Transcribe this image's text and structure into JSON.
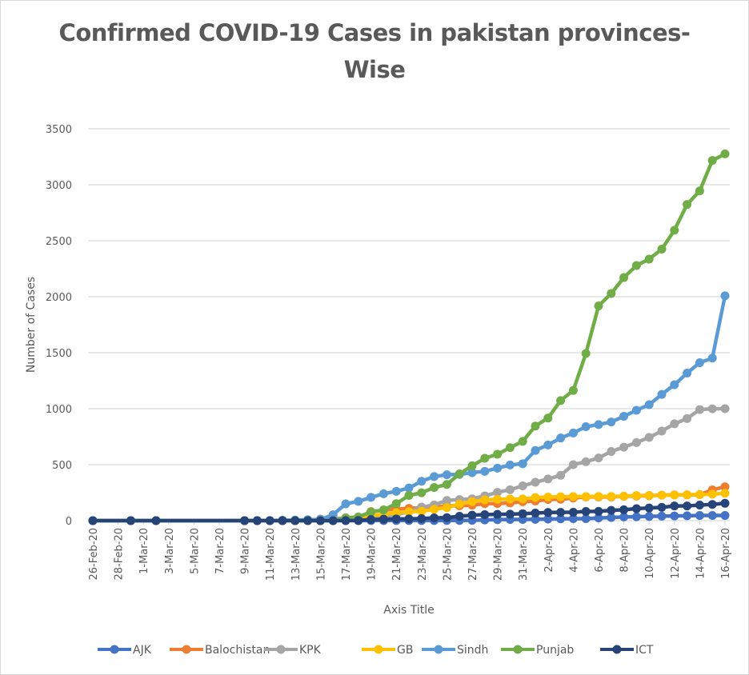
{
  "chart_data": {
    "type": "line",
    "title": "Confirmed COVID-19 Cases in pakistan provinces-Wise",
    "title_lines": [
      "Confirmed COVID-19 Cases in pakistan provinces-",
      "Wise"
    ],
    "xlabel": "Axis Title",
    "ylabel": "Number of Cases",
    "ylim": [
      0,
      3500
    ],
    "yticks": [
      "0",
      "500",
      "1000",
      "1500",
      "2000",
      "2500",
      "3000",
      "3500"
    ],
    "ytick_values": [
      0,
      500,
      1000,
      1500,
      2000,
      2500,
      3000,
      3500
    ],
    "x_axis_type": "date",
    "x_start": "26-Feb-20",
    "x_end": "16-Apr-20",
    "x_day_range": [
      0,
      50
    ],
    "xticks": [
      "26-Feb-20",
      "28-Feb-20",
      "1-Mar-20",
      "3-Mar-20",
      "5-Mar-20",
      "7-Mar-20",
      "9-Mar-20",
      "11-Mar-20",
      "13-Mar-20",
      "15-Mar-20",
      "17-Mar-20",
      "19-Mar-20",
      "21-Mar-20",
      "23-Mar-20",
      "25-Mar-20",
      "27-Mar-20",
      "29-Mar-20",
      "31-Mar-20",
      "2-Apr-20",
      "4-Apr-20",
      "6-Apr-20",
      "8-Apr-20",
      "10-Apr-20",
      "12-Apr-20",
      "14-Apr-20",
      "16-Apr-20"
    ],
    "grid": true,
    "legend_position": "bottom",
    "x_days": [
      0,
      3,
      5,
      12,
      13,
      14,
      15,
      16,
      17,
      18,
      19,
      20,
      21,
      22,
      23,
      24,
      25,
      26,
      27,
      28,
      29,
      30,
      31,
      32,
      33,
      34,
      35,
      36,
      37,
      38,
      39,
      40,
      41,
      42,
      43,
      44,
      45,
      46,
      47,
      48,
      49,
      50
    ],
    "series": [
      {
        "name": "AJK",
        "color": "#4472c4",
        "values": [
          0,
          0,
          0,
          0,
          0,
          0,
          0,
          0,
          0,
          0,
          0,
          0,
          0,
          1,
          1,
          1,
          1,
          1,
          1,
          2,
          2,
          3,
          6,
          9,
          11,
          11,
          12,
          14,
          16,
          18,
          18,
          24,
          28,
          33,
          35,
          38,
          40,
          42,
          44,
          46,
          46,
          46
        ]
      },
      {
        "name": "Balochistan",
        "color": "#ed7d31",
        "values": [
          0,
          0,
          0,
          0,
          0,
          0,
          0,
          0,
          0,
          0,
          10,
          15,
          23,
          81,
          92,
          104,
          110,
          115,
          119,
          131,
          133,
          138,
          152,
          153,
          158,
          169,
          175,
          189,
          191,
          202,
          212,
          212,
          212,
          218,
          220,
          222,
          228,
          230,
          230,
          232,
          275,
          303
        ]
      },
      {
        "name": "KPK",
        "color": "#a5a5a5",
        "values": [
          0,
          0,
          0,
          0,
          0,
          0,
          0,
          1,
          1,
          15,
          19,
          23,
          31,
          38,
          38,
          53,
          80,
          121,
          140,
          180,
          188,
          195,
          221,
          253,
          276,
          311,
          343,
          372,
          405,
          500,
          526,
          560,
          618,
          656,
          697,
          744,
          800,
          865,
          912,
          992,
          999,
          1000
        ]
      },
      {
        "name": "GB",
        "color": "#ffc000",
        "values": [
          0,
          0,
          0,
          0,
          0,
          0,
          0,
          0,
          0,
          0,
          3,
          3,
          21,
          46,
          55,
          71,
          80,
          84,
          102,
          116,
          148,
          170,
          186,
          190,
          193,
          194,
          206,
          211,
          213,
          215,
          215,
          216,
          216,
          219,
          224,
          225,
          228,
          229,
          231,
          233,
          237,
          245
        ]
      },
      {
        "name": "Sindh",
        "color": "#5b9bd5",
        "values": [
          0,
          0,
          0,
          0,
          1,
          1,
          4,
          5,
          9,
          9,
          53,
          150,
          172,
          208,
          240,
          262,
          292,
          352,
          394,
          410,
          413,
          429,
          440,
          469,
          497,
          508,
          627,
          676,
          738,
          783,
          839,
          858,
          881,
          932,
          986,
          1036,
          1128,
          1214,
          1318,
          1411,
          1452,
          2008
        ]
      },
      {
        "name": "Punjab",
        "color": "#70ad47",
        "values": [
          0,
          0,
          0,
          0,
          0,
          0,
          0,
          0,
          0,
          0,
          1,
          26,
          33,
          78,
          96,
          152,
          225,
          249,
          296,
          323,
          418,
          490,
          557,
          593,
          652,
          708,
          845,
          916,
          1072,
          1163,
          1493,
          1918,
          2029,
          2171,
          2279,
          2336,
          2425,
          2594,
          2824,
          2945,
          3217,
          3276
        ]
      },
      {
        "name": "ICT",
        "color": "#264478",
        "values": [
          0,
          0,
          0,
          0,
          0,
          0,
          0,
          0,
          0,
          0,
          0,
          1,
          2,
          10,
          13,
          15,
          16,
          19,
          25,
          27,
          39,
          49,
          54,
          56,
          58,
          62,
          68,
          73,
          74,
          75,
          82,
          83,
          92,
          97,
          107,
          113,
          119,
          131,
          131,
          139,
          145,
          155
        ]
      }
    ]
  }
}
